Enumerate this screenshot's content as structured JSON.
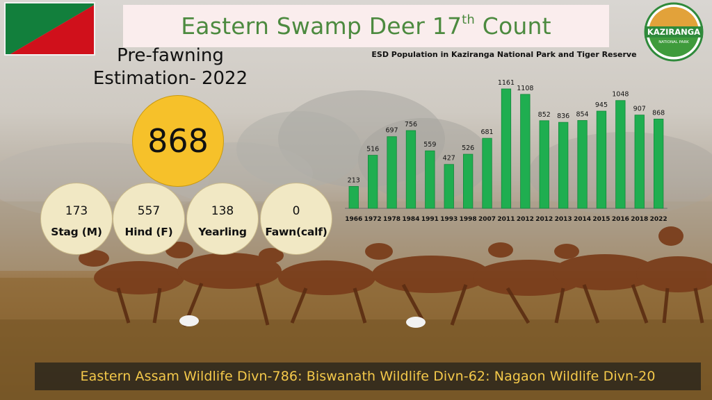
{
  "title": {
    "main": "Eastern Swamp Deer 17",
    "sup": "th",
    "tail": " Count"
  },
  "estimate": {
    "line1": "Pre-fawning",
    "line2": "Estimation- 2022",
    "total": "868"
  },
  "categories": [
    {
      "count": "173",
      "label": "Stag (M)"
    },
    {
      "count": "557",
      "label": "Hind (F)"
    },
    {
      "count": "138",
      "label": "Yearling"
    },
    {
      "count": "0",
      "label": "Fawn(calf)"
    }
  ],
  "logo": {
    "text_top": "KAZIRANGA",
    "text_sub": "NATIONAL PARK"
  },
  "footer": {
    "text": "Eastern Assam Wildlife Divn-786: Biswanath Wildlife Divn-62:  Nagaon Wildlife Divn-20"
  },
  "colors": {
    "bar": "#1fae50",
    "bar_dark": "#13883a",
    "title_green": "#4c8a3f",
    "circle_gold": "#f6c12a",
    "flag_green": "#127f3c",
    "flag_red": "#d0101b"
  },
  "chart_data": {
    "type": "bar",
    "title": "ESD Population in Kaziranga National Park and Tiger Reserve",
    "xlabel": "",
    "ylabel": "",
    "categories": [
      "1966",
      "1972",
      "1978",
      "1984",
      "1991",
      "1993",
      "1998",
      "2007",
      "2011",
      "2012",
      "2012",
      "2013",
      "2014",
      "2015",
      "2016",
      "2018",
      "2022"
    ],
    "values": [
      213,
      516,
      697,
      756,
      559,
      427,
      526,
      681,
      1161,
      1108,
      852,
      836,
      854,
      945,
      1048,
      907,
      868
    ],
    "ylim": [
      0,
      1200
    ],
    "grid": false,
    "legend": "none"
  }
}
